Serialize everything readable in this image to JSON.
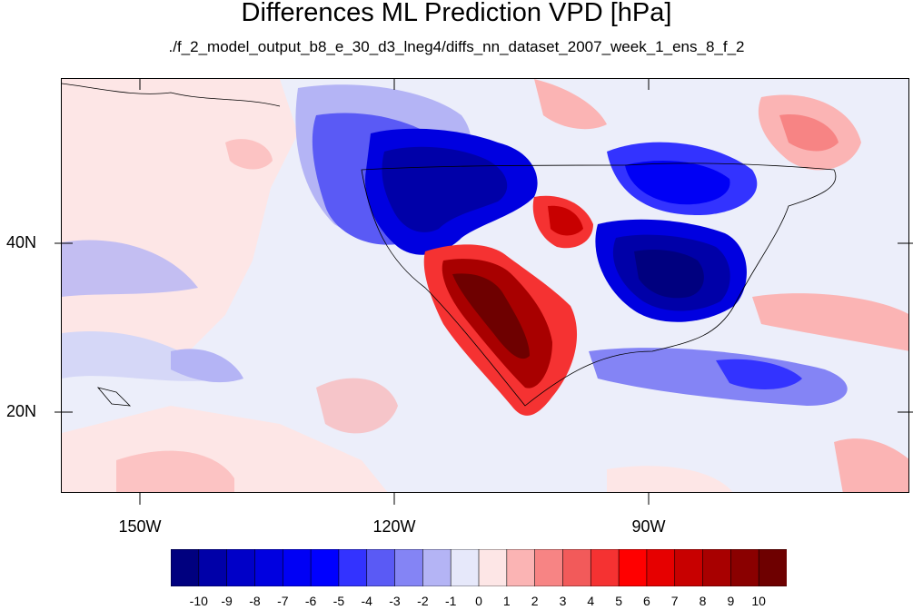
{
  "title": "Differences ML Prediction VPD [hPa]",
  "subtitle": "./f_2_model_output_b8_e_30_d3_lneg4/diffs_nn_dataset_2007_week_1_ens_8_f_2",
  "longitude_labels": [
    "150W",
    "120W",
    "90W"
  ],
  "latitude_labels": [
    "40N",
    "20N"
  ],
  "colorbar": {
    "labels": [
      "-10",
      "-9",
      "-8",
      "-7",
      "-6",
      "-5",
      "-4",
      "-3",
      "-2",
      "-1",
      "0",
      "1",
      "2",
      "3",
      "4",
      "5",
      "6",
      "7",
      "8",
      "9",
      "10"
    ],
    "colors": [
      "#00007f",
      "#0000a8",
      "#0000c8",
      "#0000e0",
      "#0000f5",
      "#0000ff",
      "#3333ff",
      "#5a5af5",
      "#8484f5",
      "#b4b4f5",
      "#e6e8fa",
      "#fde6e6",
      "#fbb4b4",
      "#f78484",
      "#f25a5a",
      "#f53232",
      "#ff0000",
      "#e60000",
      "#c80000",
      "#a80000",
      "#8a0000",
      "#6e0000"
    ]
  },
  "colors": {
    "background_ocean": "#eceefa",
    "land_outline": "#000000"
  }
}
